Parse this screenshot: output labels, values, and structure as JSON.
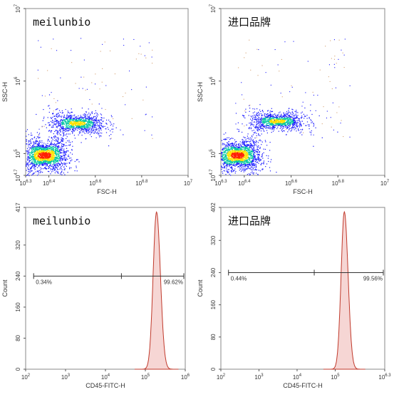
{
  "chart_data": [
    {
      "type": "scatter",
      "panel": "scatter-left",
      "title": "meilunbio",
      "xlabel": "FSC-H",
      "ylabel": "SSC-H",
      "xscale": "log",
      "yscale": "log",
      "xlim": [
        6.3,
        7.0
      ],
      "ylim": [
        4.7,
        7.0
      ],
      "xticks": [
        6.3,
        6.4,
        6.6,
        6.8,
        7.0
      ],
      "xtick_labels": [
        {
          "base": "10",
          "exp": "6.3"
        },
        {
          "base": "10",
          "exp": "6.4"
        },
        {
          "base": "10",
          "exp": "6.6"
        },
        {
          "base": "10",
          "exp": "6.8"
        },
        {
          "base": "10",
          "exp": "7"
        }
      ],
      "yticks": [
        4.7,
        5.0,
        6.0,
        7.0
      ],
      "ytick_labels": [
        {
          "base": "10",
          "exp": "4.7"
        },
        {
          "base": "10",
          "exp": "5"
        },
        {
          "base": "10",
          "exp": "6"
        },
        {
          "base": "10",
          "exp": "7"
        }
      ],
      "populations": [
        {
          "name": "",
          "center_log": [
            6.38,
            4.98
          ],
          "spread_log": [
            0.05,
            0.12
          ],
          "density": "high"
        },
        {
          "name": "",
          "center_log": [
            6.52,
            5.42
          ],
          "spread_log": [
            0.06,
            0.08
          ],
          "density": "medium"
        }
      ]
    },
    {
      "type": "scatter",
      "panel": "scatter-right",
      "title": "进口品牌",
      "xlabel": "FSC-H",
      "ylabel": "SSC-H",
      "xscale": "log",
      "yscale": "log",
      "xlim": [
        6.3,
        7.0
      ],
      "ylim": [
        4.7,
        7.0
      ],
      "xticks": [
        6.3,
        6.4,
        6.6,
        6.8,
        7.0
      ],
      "xtick_labels": [
        {
          "base": "10",
          "exp": "6.3"
        },
        {
          "base": "10",
          "exp": "6.4"
        },
        {
          "base": "10",
          "exp": "6.6"
        },
        {
          "base": "10",
          "exp": "6.8"
        },
        {
          "base": "10",
          "exp": "7"
        }
      ],
      "yticks": [
        4.7,
        5.0,
        6.0,
        7.0
      ],
      "ytick_labels": [
        {
          "base": "10",
          "exp": "4.7"
        },
        {
          "base": "10",
          "exp": "5"
        },
        {
          "base": "10",
          "exp": "6"
        },
        {
          "base": "10",
          "exp": "7"
        }
      ],
      "populations": [
        {
          "name": "",
          "center_log": [
            6.37,
            4.98
          ],
          "spread_log": [
            0.05,
            0.12
          ],
          "density": "high"
        },
        {
          "name": "",
          "center_log": [
            6.54,
            5.45
          ],
          "spread_log": [
            0.06,
            0.07
          ],
          "density": "medium"
        }
      ]
    },
    {
      "type": "area",
      "panel": "hist-left",
      "title": "meilunbio",
      "xlabel": "CD45-FITC-H",
      "ylabel": "Count",
      "xscale": "log",
      "xlim": [
        2.0,
        6.0
      ],
      "ylim": [
        0,
        417
      ],
      "yticks": [
        0,
        80,
        160,
        240,
        320,
        417
      ],
      "xticks": [
        2,
        3,
        4,
        5,
        6
      ],
      "xtick_labels": [
        {
          "base": "10",
          "exp": "2"
        },
        {
          "base": "10",
          "exp": "3"
        },
        {
          "base": "10",
          "exp": "4"
        },
        {
          "base": "10",
          "exp": "5"
        },
        {
          "base": "10",
          "exp": "6"
        }
      ],
      "peak_log": 5.28,
      "peak_count": 405,
      "gate": {
        "y": 240,
        "x_start": 2.2,
        "x_div": 4.4,
        "x_end": 6.0,
        "left_pct": "0.34%",
        "right_pct": "99.62%"
      }
    },
    {
      "type": "area",
      "panel": "hist-right",
      "title": "进口品牌",
      "xlabel": "CD45-FITC-H",
      "ylabel": "Count",
      "xscale": "log",
      "xlim": [
        2.0,
        6.3
      ],
      "ylim": [
        0,
        402
      ],
      "yticks": [
        0,
        80,
        160,
        240,
        320,
        402
      ],
      "xticks": [
        2,
        3,
        4,
        5,
        6.3
      ],
      "xtick_labels": [
        {
          "base": "10",
          "exp": "2"
        },
        {
          "base": "10",
          "exp": "3"
        },
        {
          "base": "10",
          "exp": "4"
        },
        {
          "base": "10",
          "exp": "5"
        },
        {
          "base": "10",
          "exp": "6.3"
        }
      ],
      "peak_log": 5.24,
      "peak_count": 391,
      "gate": {
        "y": 240,
        "x_start": 2.2,
        "x_div": 4.45,
        "x_end": 6.3,
        "left_pct": "0.44%",
        "right_pct": "99.56%"
      }
    }
  ],
  "colors": {
    "axis": "#555555",
    "frame": "#888888",
    "hist_line": "#c0392b",
    "hist_fill": "#f6d6d4",
    "gate": "#333333",
    "density_low": "#1a1aff",
    "density_mid": "#00c8a0",
    "density_high": "#ffe000",
    "density_peak": "#ff2000"
  }
}
